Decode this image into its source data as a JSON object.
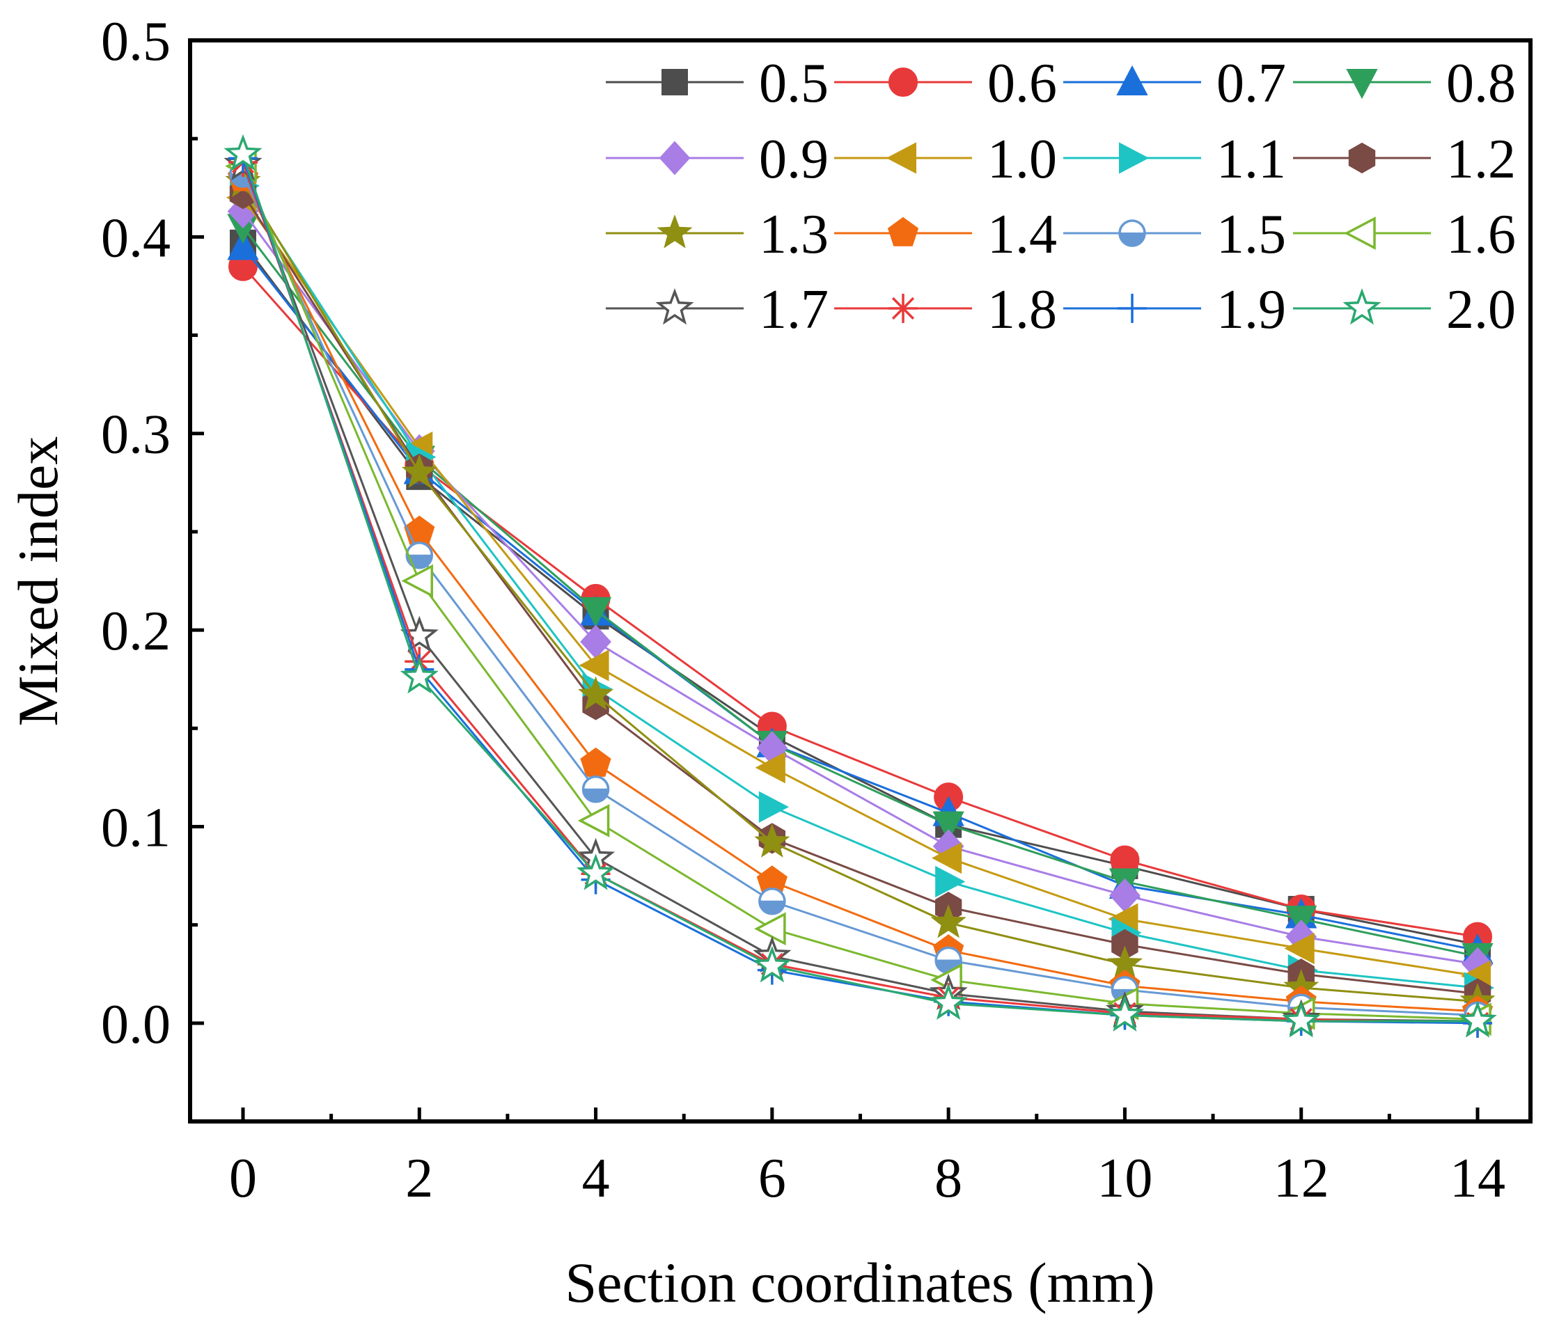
{
  "chart_data": {
    "type": "line",
    "title": "",
    "xlabel": "Section coordinates (mm)",
    "ylabel": "Mixed index",
    "x": [
      0,
      2,
      4,
      6,
      8,
      10,
      12,
      14
    ],
    "xlim": [
      -0.6,
      14.6
    ],
    "ylim": [
      -0.05,
      0.5
    ],
    "x_ticks": [
      0,
      2,
      4,
      6,
      8,
      10,
      12,
      14
    ],
    "x_tick_labels": [
      "0",
      "2",
      "4",
      "6",
      "8",
      "10",
      "12",
      "14"
    ],
    "y_ticks": [
      0.0,
      0.1,
      0.2,
      0.3,
      0.4,
      0.5
    ],
    "y_tick_labels": [
      "0.0",
      "0.1",
      "0.2",
      "0.3",
      "0.4",
      "0.5"
    ],
    "grid": false,
    "legend_position": "top-right",
    "series": [
      {
        "name": "0.5",
        "color": "#4d4d4d",
        "marker": "square",
        "values": [
          0.397,
          0.278,
          0.207,
          0.146,
          0.101,
          0.08,
          0.058,
          0.04
        ]
      },
      {
        "name": "0.6",
        "color": "#e8393a",
        "marker": "circle",
        "values": [
          0.385,
          0.284,
          0.216,
          0.151,
          0.115,
          0.083,
          0.058,
          0.044
        ]
      },
      {
        "name": "0.7",
        "color": "#1a6fdb",
        "marker": "triangle-up",
        "values": [
          0.395,
          0.281,
          0.209,
          0.142,
          0.107,
          0.07,
          0.055,
          0.037
        ]
      },
      {
        "name": "0.8",
        "color": "#2e9e5b",
        "marker": "triangle-down",
        "values": [
          0.405,
          0.287,
          0.21,
          0.142,
          0.101,
          0.072,
          0.053,
          0.034
        ]
      },
      {
        "name": "0.9",
        "color": "#a87de6",
        "marker": "diamond",
        "values": [
          0.413,
          0.291,
          0.194,
          0.14,
          0.09,
          0.065,
          0.044,
          0.03
        ]
      },
      {
        "name": "1.0",
        "color": "#c49a12",
        "marker": "triangle-left",
        "values": [
          0.42,
          0.293,
          0.182,
          0.13,
          0.084,
          0.053,
          0.038,
          0.024
        ]
      },
      {
        "name": "1.1",
        "color": "#1ec4c4",
        "marker": "triangle-right",
        "values": [
          0.426,
          0.288,
          0.17,
          0.11,
          0.072,
          0.046,
          0.027,
          0.018
        ]
      },
      {
        "name": "1.2",
        "color": "#7a4a45",
        "marker": "hexagon",
        "values": [
          0.422,
          0.282,
          0.162,
          0.094,
          0.059,
          0.04,
          0.025,
          0.015
        ]
      },
      {
        "name": "1.3",
        "color": "#8f8f12",
        "marker": "star",
        "values": [
          0.428,
          0.28,
          0.167,
          0.092,
          0.051,
          0.03,
          0.018,
          0.011
        ]
      },
      {
        "name": "1.4",
        "color": "#f26b10",
        "marker": "pentagon",
        "values": [
          0.43,
          0.25,
          0.132,
          0.072,
          0.037,
          0.019,
          0.011,
          0.006
        ]
      },
      {
        "name": "1.5",
        "color": "#6699d4",
        "marker": "half-circle",
        "values": [
          0.432,
          0.238,
          0.119,
          0.062,
          0.032,
          0.017,
          0.008,
          0.004
        ]
      },
      {
        "name": "1.6",
        "color": "#7ab82e",
        "marker": "open-triangle-left",
        "values": [
          0.436,
          0.225,
          0.103,
          0.048,
          0.022,
          0.01,
          0.005,
          0.002
        ]
      },
      {
        "name": "1.7",
        "color": "#555555",
        "marker": "open-star",
        "values": [
          0.437,
          0.197,
          0.084,
          0.034,
          0.015,
          0.006,
          0.002,
          0.001
        ]
      },
      {
        "name": "1.8",
        "color": "#e8393a",
        "marker": "asterisk",
        "values": [
          0.438,
          0.184,
          0.076,
          0.03,
          0.013,
          0.005,
          0.002,
          0.0
        ]
      },
      {
        "name": "1.9",
        "color": "#1a6fdb",
        "marker": "plus",
        "values": [
          0.44,
          0.18,
          0.073,
          0.027,
          0.011,
          0.004,
          0.001,
          0.0
        ]
      },
      {
        "name": "2.0",
        "color": "#2aa870",
        "marker": "open-star",
        "values": [
          0.442,
          0.176,
          0.076,
          0.029,
          0.01,
          0.004,
          0.001,
          0.001
        ]
      }
    ]
  }
}
